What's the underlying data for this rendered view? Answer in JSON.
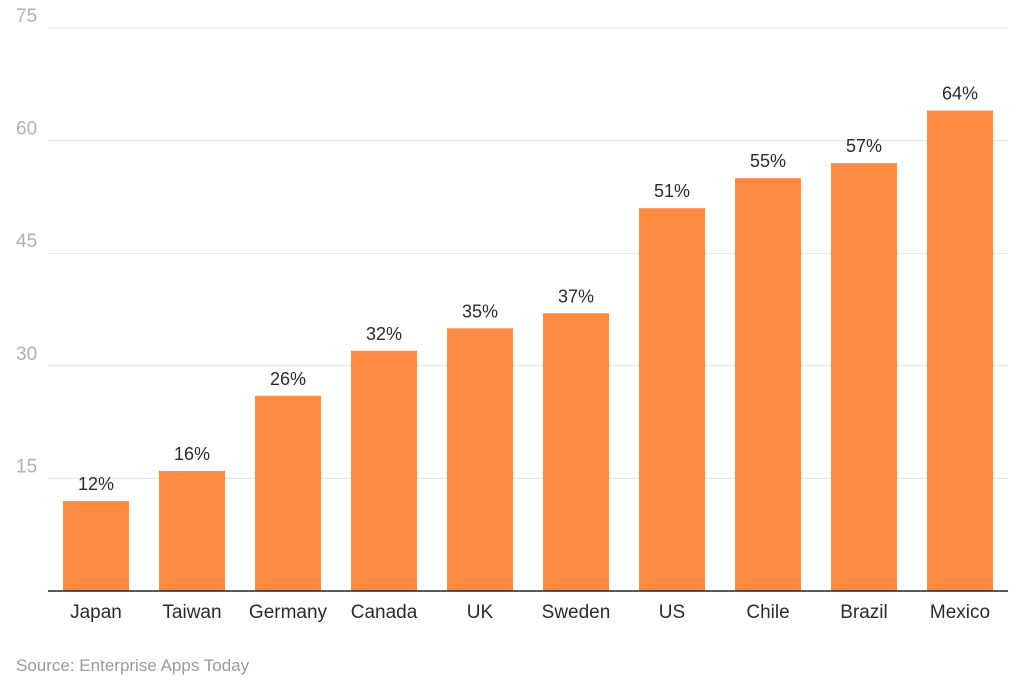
{
  "chart_data": {
    "type": "bar",
    "title": "",
    "xlabel": "",
    "ylabel": "",
    "categories": [
      "Japan",
      "Taiwan",
      "Germany",
      "Canada",
      "UK",
      "Sweden",
      "US",
      "Chile",
      "Brazil",
      "Mexico"
    ],
    "values": [
      12,
      16,
      26,
      32,
      35,
      37,
      51,
      55,
      57,
      64
    ],
    "data_labels": [
      "12%",
      "16%",
      "26%",
      "32%",
      "35%",
      "37%",
      "51%",
      "55%",
      "57%",
      "64%"
    ],
    "ylim": [
      0,
      75
    ],
    "yticks": [
      15,
      30,
      45,
      60,
      75
    ],
    "grid": true,
    "legend": "none",
    "bar_color": "#FF8A42"
  },
  "source": "Source: Enterprise Apps Today"
}
